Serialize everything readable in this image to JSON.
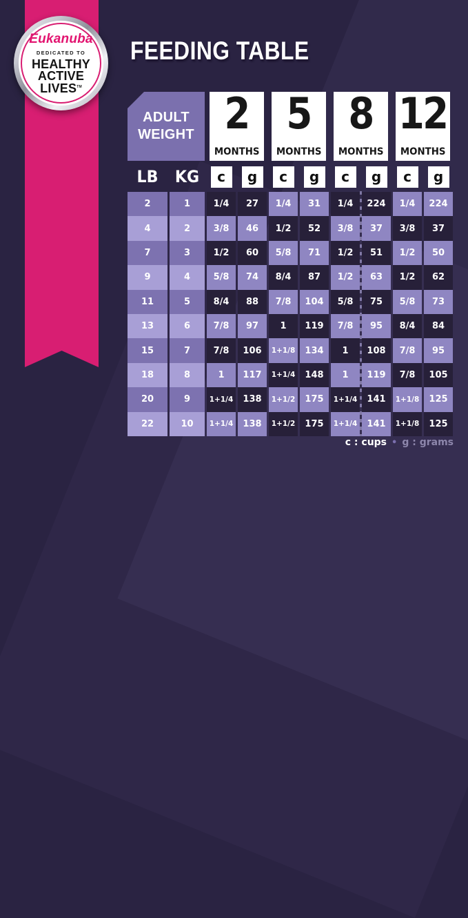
{
  "title": "FEEDING TABLE",
  "badge": {
    "brand": "Eukanuba",
    "dedicated": "DEDICATED TO",
    "line1": "HEALTHY",
    "line2": "ACTIVE",
    "line3": "LIVES",
    "trademark": "TM"
  },
  "chart_data": {
    "type": "table",
    "title": "FEEDING TABLE",
    "corner_line1": "ADULT",
    "corner_line2": "WEIGHT",
    "month_columns": [
      "2",
      "5",
      "8",
      "12"
    ],
    "month_label": "MONTHS",
    "weight_units": [
      "LB",
      "KG"
    ],
    "measure_units": [
      "c",
      "g"
    ],
    "rows": [
      {
        "lb": "2",
        "kg": "1",
        "values": [
          "1/4",
          "27",
          "1/4",
          "31",
          "1/4",
          "224",
          "1/4",
          "224"
        ]
      },
      {
        "lb": "4",
        "kg": "2",
        "values": [
          "3/8",
          "46",
          "1/2",
          "52",
          "3/8",
          "37",
          "3/8",
          "37"
        ]
      },
      {
        "lb": "7",
        "kg": "3",
        "values": [
          "1/2",
          "60",
          "5/8",
          "71",
          "1/2",
          "51",
          "1/2",
          "50"
        ]
      },
      {
        "lb": "9",
        "kg": "4",
        "values": [
          "5/8",
          "74",
          "8/4",
          "87",
          "1/2",
          "63",
          "1/2",
          "62"
        ]
      },
      {
        "lb": "11",
        "kg": "5",
        "values": [
          "8/4",
          "88",
          "7/8",
          "104",
          "5/8",
          "75",
          "5/8",
          "73"
        ]
      },
      {
        "lb": "13",
        "kg": "6",
        "values": [
          "7/8",
          "97",
          "1",
          "119",
          "7/8",
          "95",
          "8/4",
          "84"
        ]
      },
      {
        "lb": "15",
        "kg": "7",
        "values": [
          "7/8",
          "106",
          "1+1/8",
          "134",
          "1",
          "108",
          "7/8",
          "95"
        ]
      },
      {
        "lb": "18",
        "kg": "8",
        "values": [
          "1",
          "117",
          "1+1/4",
          "148",
          "1",
          "119",
          "7/8",
          "105"
        ]
      },
      {
        "lb": "20",
        "kg": "9",
        "values": [
          "1+1/4",
          "138",
          "1+1/2",
          "175",
          "1+1/4",
          "141",
          "1+1/8",
          "125"
        ]
      },
      {
        "lb": "22",
        "kg": "10",
        "values": [
          "1+1/4",
          "138",
          "1+1/2",
          "175",
          "1+1/4",
          "141",
          "1+1/8",
          "125"
        ]
      }
    ]
  },
  "legend": {
    "cups_label": "c : cups",
    "separator": "•",
    "grams_label": "g : grams"
  },
  "colors": {
    "background": "#2a2342",
    "ribbon_pink": "#d81e72",
    "brand_pink": "#e2136f",
    "cell_dark": "#272039",
    "cell_light": "#8f86c2",
    "weight_cell_odd": "#7d72b0",
    "weight_cell_even": "#a89fd6",
    "corner_box": "#7b70ae"
  }
}
